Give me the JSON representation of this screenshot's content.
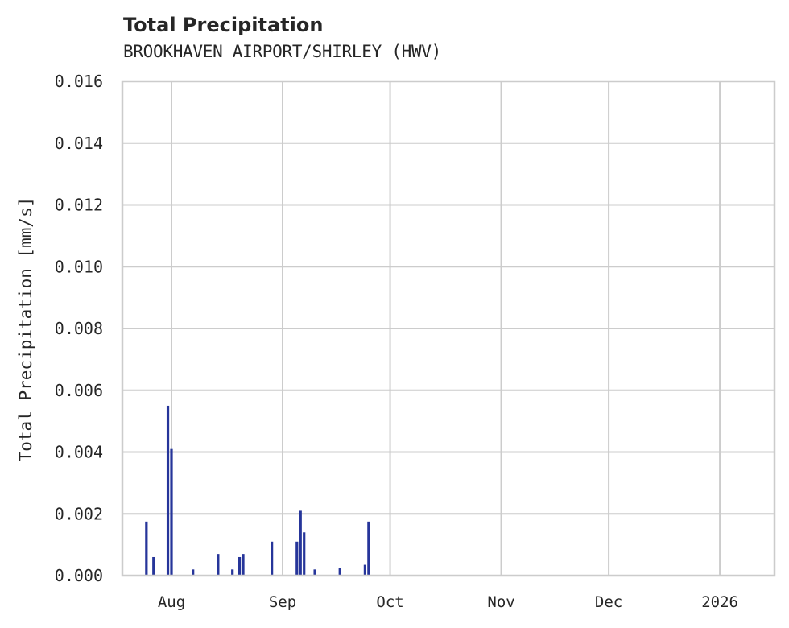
{
  "chart_data": {
    "type": "bar",
    "title": "Total Precipitation",
    "subtitle": "BROOKHAVEN AIRPORT/SHIRLEY (HWV)",
    "xlabel": "",
    "ylabel": "Total Precipitation [mm/s]",
    "ylim": [
      0,
      0.016
    ],
    "yticks": [
      "0.000",
      "0.002",
      "0.004",
      "0.006",
      "0.008",
      "0.010",
      "0.012",
      "0.014",
      "0.016"
    ],
    "xticks": [
      "Aug",
      "Sep",
      "Oct",
      "Nov",
      "Dec",
      "2026"
    ],
    "grid": true,
    "series_color": "#26359a",
    "series": [
      {
        "name": "Total Precipitation",
        "x": [
          "2025-07-25",
          "2025-07-27",
          "2025-07-31",
          "2025-08-01",
          "2025-08-07",
          "2025-08-14",
          "2025-08-18",
          "2025-08-20",
          "2025-08-21",
          "2025-08-29",
          "2025-09-05",
          "2025-09-06",
          "2025-09-07",
          "2025-09-10",
          "2025-09-17",
          "2025-09-24",
          "2025-09-25"
        ],
        "values": [
          0.00175,
          0.0006,
          0.0055,
          0.0041,
          0.0002,
          0.0007,
          0.0002,
          0.0006,
          0.0007,
          0.0011,
          0.0011,
          0.0021,
          0.0014,
          0.0002,
          0.00025,
          0.00035,
          0.00175
        ]
      }
    ]
  }
}
